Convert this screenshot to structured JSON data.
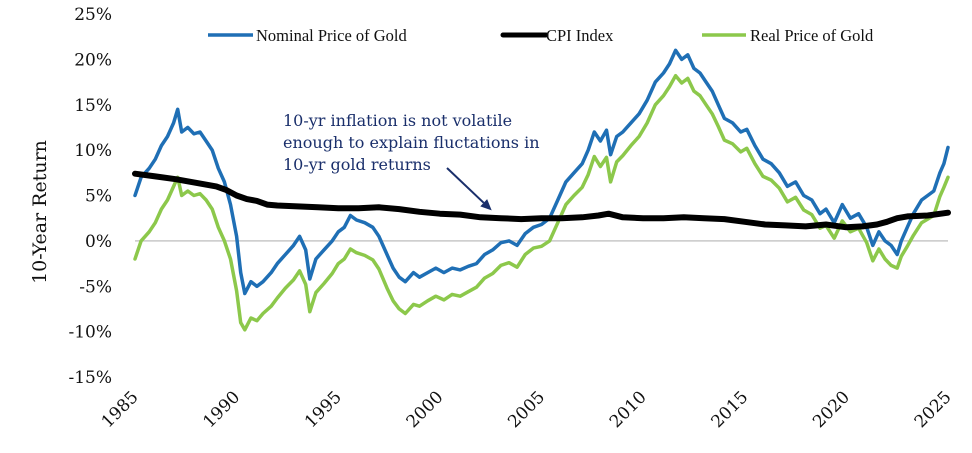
{
  "chart_data": {
    "type": "line",
    "title": "",
    "xlabel": "",
    "ylabel": "10-Year Return",
    "xlim": [
      1985,
      2025
    ],
    "ylim": [
      -15,
      25
    ],
    "y_ticks": [
      -15,
      -10,
      -5,
      0,
      5,
      10,
      15,
      20,
      25
    ],
    "y_tick_labels": [
      "-15%",
      "-10%",
      "-5%",
      "0%",
      "5%",
      "10%",
      "15%",
      "20%",
      "25%"
    ],
    "x_ticks": [
      1985,
      1990,
      1995,
      2000,
      2005,
      2010,
      2015,
      2020,
      2025
    ],
    "x_tick_labels": [
      "1985",
      "1990",
      "1995",
      "2000",
      "2005",
      "2010",
      "2015",
      "2020",
      "2025"
    ],
    "grid": false,
    "zero_line": true,
    "legend_position": "top",
    "annotation": {
      "lines": [
        "10-yr inflation is not volatile",
        "enough to explain fluctations in",
        "10-yr gold returns"
      ],
      "points_to": {
        "x": 2002.5,
        "y": 2.7
      }
    },
    "series": [
      {
        "name": "Nominal Price of Gold",
        "color": "#1f6fb5",
        "x": [
          1985.0,
          1985.3,
          1985.7,
          1986.0,
          1986.3,
          1986.6,
          1986.9,
          1987.1,
          1987.3,
          1987.6,
          1987.9,
          1988.2,
          1988.5,
          1988.8,
          1989.1,
          1989.4,
          1989.7,
          1990.0,
          1990.2,
          1990.4,
          1990.7,
          1991.0,
          1991.3,
          1991.7,
          1992.0,
          1992.4,
          1992.8,
          1993.1,
          1993.4,
          1993.6,
          1993.9,
          1994.3,
          1994.7,
          1995.0,
          1995.3,
          1995.6,
          1995.9,
          1996.3,
          1996.7,
          1997.0,
          1997.4,
          1997.7,
          1998.0,
          1998.3,
          1998.7,
          1999.0,
          1999.4,
          1999.8,
          2000.2,
          2000.6,
          2001.0,
          2001.4,
          2001.8,
          2002.2,
          2002.6,
          2003.0,
          2003.4,
          2003.8,
          2004.2,
          2004.6,
          2005.0,
          2005.4,
          2005.8,
          2006.2,
          2006.6,
          2007.0,
          2007.3,
          2007.6,
          2007.9,
          2008.2,
          2008.4,
          2008.7,
          2009.0,
          2009.4,
          2009.8,
          2010.2,
          2010.6,
          2011.0,
          2011.3,
          2011.6,
          2011.9,
          2012.2,
          2012.5,
          2012.8,
          2013.1,
          2013.4,
          2013.7,
          2014.0,
          2014.4,
          2014.8,
          2015.1,
          2015.5,
          2015.9,
          2016.3,
          2016.7,
          2017.1,
          2017.5,
          2017.9,
          2018.3,
          2018.7,
          2019.0,
          2019.4,
          2019.8,
          2020.2,
          2020.6,
          2021.0,
          2021.3,
          2021.6,
          2021.9,
          2022.2,
          2022.5,
          2022.7,
          2023.0,
          2023.3,
          2023.7,
          2024.0,
          2024.3,
          2024.6,
          2024.8,
          2025.0
        ],
        "values": [
          5.0,
          7.0,
          8.0,
          9.0,
          10.5,
          11.5,
          13.0,
          14.5,
          12.0,
          12.5,
          11.8,
          12.0,
          11.0,
          10.0,
          8.0,
          6.5,
          4.0,
          0.5,
          -3.5,
          -5.8,
          -4.5,
          -5.0,
          -4.5,
          -3.5,
          -2.5,
          -1.5,
          -0.5,
          0.5,
          -1.0,
          -4.2,
          -2.0,
          -1.0,
          0.0,
          1.0,
          1.5,
          2.8,
          2.3,
          2.0,
          1.5,
          0.5,
          -1.5,
          -3.0,
          -4.0,
          -4.5,
          -3.5,
          -4.0,
          -3.5,
          -3.0,
          -3.5,
          -3.0,
          -3.2,
          -2.8,
          -2.5,
          -1.5,
          -1.0,
          -0.2,
          0.0,
          -0.5,
          0.8,
          1.5,
          1.8,
          2.5,
          4.5,
          6.5,
          7.5,
          8.5,
          10.0,
          12.0,
          11.0,
          12.2,
          9.5,
          11.5,
          12.0,
          13.0,
          14.0,
          15.5,
          17.5,
          18.5,
          19.5,
          21.0,
          20.0,
          20.5,
          19.0,
          18.5,
          17.5,
          16.5,
          15.0,
          13.5,
          13.0,
          12.0,
          12.3,
          10.5,
          9.0,
          8.5,
          7.5,
          6.0,
          6.5,
          5.0,
          4.5,
          3.0,
          3.5,
          2.0,
          4.0,
          2.5,
          3.0,
          1.5,
          -0.5,
          1.0,
          0.0,
          -0.5,
          -1.5,
          0.0,
          1.5,
          3.0,
          4.5,
          5.0,
          5.5,
          7.5,
          8.5,
          10.3
        ]
      },
      {
        "name": "CPI Index",
        "color": "#000000",
        "x": [
          1985.0,
          1986.0,
          1987.0,
          1988.0,
          1989.0,
          1989.5,
          1990.0,
          1990.5,
          1991.0,
          1991.5,
          1992.0,
          1993.0,
          1994.0,
          1995.0,
          1996.0,
          1997.0,
          1998.0,
          1999.0,
          2000.0,
          2001.0,
          2002.0,
          2003.0,
          2004.0,
          2005.0,
          2006.0,
          2007.0,
          2007.8,
          2008.3,
          2009.0,
          2010.0,
          2011.0,
          2012.0,
          2013.0,
          2014.0,
          2015.0,
          2016.0,
          2017.0,
          2018.0,
          2019.0,
          2020.0,
          2020.8,
          2021.5,
          2022.0,
          2022.5,
          2023.0,
          2024.0,
          2025.0
        ],
        "values": [
          7.4,
          7.1,
          6.8,
          6.4,
          6.0,
          5.6,
          5.0,
          4.6,
          4.4,
          4.0,
          3.9,
          3.8,
          3.7,
          3.6,
          3.6,
          3.7,
          3.5,
          3.2,
          3.0,
          2.9,
          2.6,
          2.5,
          2.4,
          2.5,
          2.5,
          2.6,
          2.8,
          3.0,
          2.6,
          2.5,
          2.5,
          2.6,
          2.5,
          2.4,
          2.1,
          1.8,
          1.7,
          1.6,
          1.8,
          1.5,
          1.6,
          1.8,
          2.1,
          2.5,
          2.7,
          2.8,
          3.1
        ]
      },
      {
        "name": "Real Price of Gold",
        "color": "#8cc84b",
        "x": [
          1985.0,
          1985.3,
          1985.7,
          1986.0,
          1986.3,
          1986.6,
          1986.9,
          1987.1,
          1987.3,
          1987.6,
          1987.9,
          1988.2,
          1988.5,
          1988.8,
          1989.1,
          1989.4,
          1989.7,
          1990.0,
          1990.2,
          1990.4,
          1990.7,
          1991.0,
          1991.3,
          1991.7,
          1992.0,
          1992.4,
          1992.8,
          1993.1,
          1993.4,
          1993.6,
          1993.9,
          1994.3,
          1994.7,
          1995.0,
          1995.3,
          1995.6,
          1995.9,
          1996.3,
          1996.7,
          1997.0,
          1997.4,
          1997.7,
          1998.0,
          1998.3,
          1998.7,
          1999.0,
          1999.4,
          1999.8,
          2000.2,
          2000.6,
          2001.0,
          2001.4,
          2001.8,
          2002.2,
          2002.6,
          2003.0,
          2003.4,
          2003.8,
          2004.2,
          2004.6,
          2005.0,
          2005.4,
          2005.8,
          2006.2,
          2006.6,
          2007.0,
          2007.3,
          2007.6,
          2007.9,
          2008.2,
          2008.4,
          2008.7,
          2009.0,
          2009.4,
          2009.8,
          2010.2,
          2010.6,
          2011.0,
          2011.3,
          2011.6,
          2011.9,
          2012.2,
          2012.5,
          2012.8,
          2013.1,
          2013.4,
          2013.7,
          2014.0,
          2014.4,
          2014.8,
          2015.1,
          2015.5,
          2015.9,
          2016.3,
          2016.7,
          2017.1,
          2017.5,
          2017.9,
          2018.3,
          2018.7,
          2019.0,
          2019.4,
          2019.8,
          2020.2,
          2020.6,
          2021.0,
          2021.3,
          2021.6,
          2021.9,
          2022.2,
          2022.5,
          2022.7,
          2023.0,
          2023.3,
          2023.7,
          2024.0,
          2024.3,
          2024.6,
          2024.8,
          2025.0
        ],
        "values": [
          -2.0,
          0.0,
          1.0,
          2.0,
          3.5,
          4.5,
          6.0,
          7.0,
          5.0,
          5.5,
          5.0,
          5.2,
          4.5,
          3.5,
          1.5,
          0.0,
          -2.0,
          -5.5,
          -9.0,
          -9.8,
          -8.5,
          -8.8,
          -8.0,
          -7.2,
          -6.3,
          -5.2,
          -4.3,
          -3.3,
          -4.8,
          -7.8,
          -5.7,
          -4.7,
          -3.6,
          -2.5,
          -2.0,
          -0.9,
          -1.3,
          -1.6,
          -2.1,
          -3.1,
          -5.2,
          -6.6,
          -7.5,
          -8.0,
          -7.0,
          -7.2,
          -6.6,
          -6.1,
          -6.5,
          -5.9,
          -6.1,
          -5.6,
          -5.1,
          -4.1,
          -3.6,
          -2.7,
          -2.4,
          -2.9,
          -1.5,
          -0.8,
          -0.6,
          0.0,
          2.0,
          4.0,
          5.0,
          5.9,
          7.3,
          9.3,
          8.2,
          9.2,
          6.5,
          8.7,
          9.4,
          10.5,
          11.5,
          13.0,
          15.0,
          16.0,
          17.0,
          18.2,
          17.4,
          17.9,
          16.5,
          16.0,
          15.0,
          14.0,
          12.6,
          11.1,
          10.7,
          9.8,
          10.2,
          8.5,
          7.1,
          6.7,
          5.8,
          4.3,
          4.8,
          3.4,
          2.9,
          1.4,
          1.7,
          0.3,
          2.2,
          1.0,
          1.4,
          -0.2,
          -2.2,
          -0.9,
          -2.0,
          -2.7,
          -3.0,
          -1.7,
          -0.6,
          0.6,
          2.0,
          2.4,
          2.8,
          4.9,
          5.9,
          7.0
        ]
      }
    ]
  }
}
